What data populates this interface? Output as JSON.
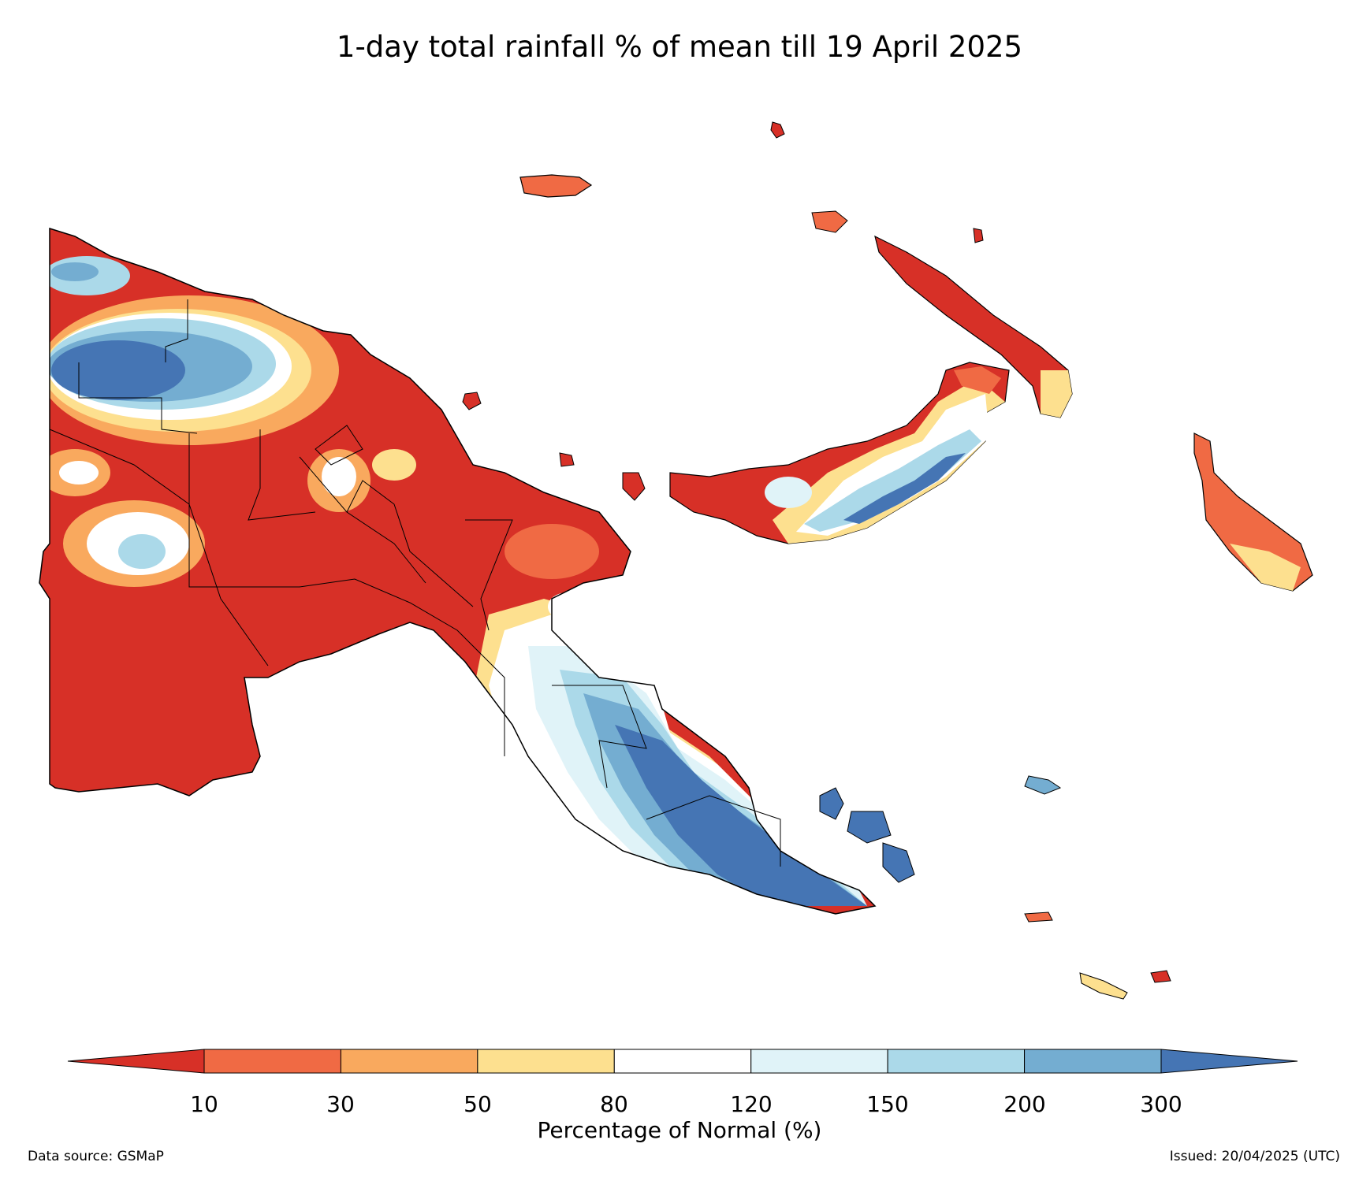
{
  "title": "1-day total rainfall % of mean till 19 April 2025",
  "colorbar": {
    "label": "Percentage of Normal (%)",
    "ticks": [
      "10",
      "30",
      "50",
      "80",
      "120",
      "150",
      "200",
      "300"
    ],
    "colors": [
      "#d73027",
      "#f06a44",
      "#f9a95e",
      "#fde08f",
      "#ffffff",
      "#e0f3f8",
      "#abd9e9",
      "#74add1",
      "#4575b4"
    ]
  },
  "footer": {
    "source": "Data source: GSMaP",
    "issued": "Issued: 20/04/2025 (UTC)"
  }
}
